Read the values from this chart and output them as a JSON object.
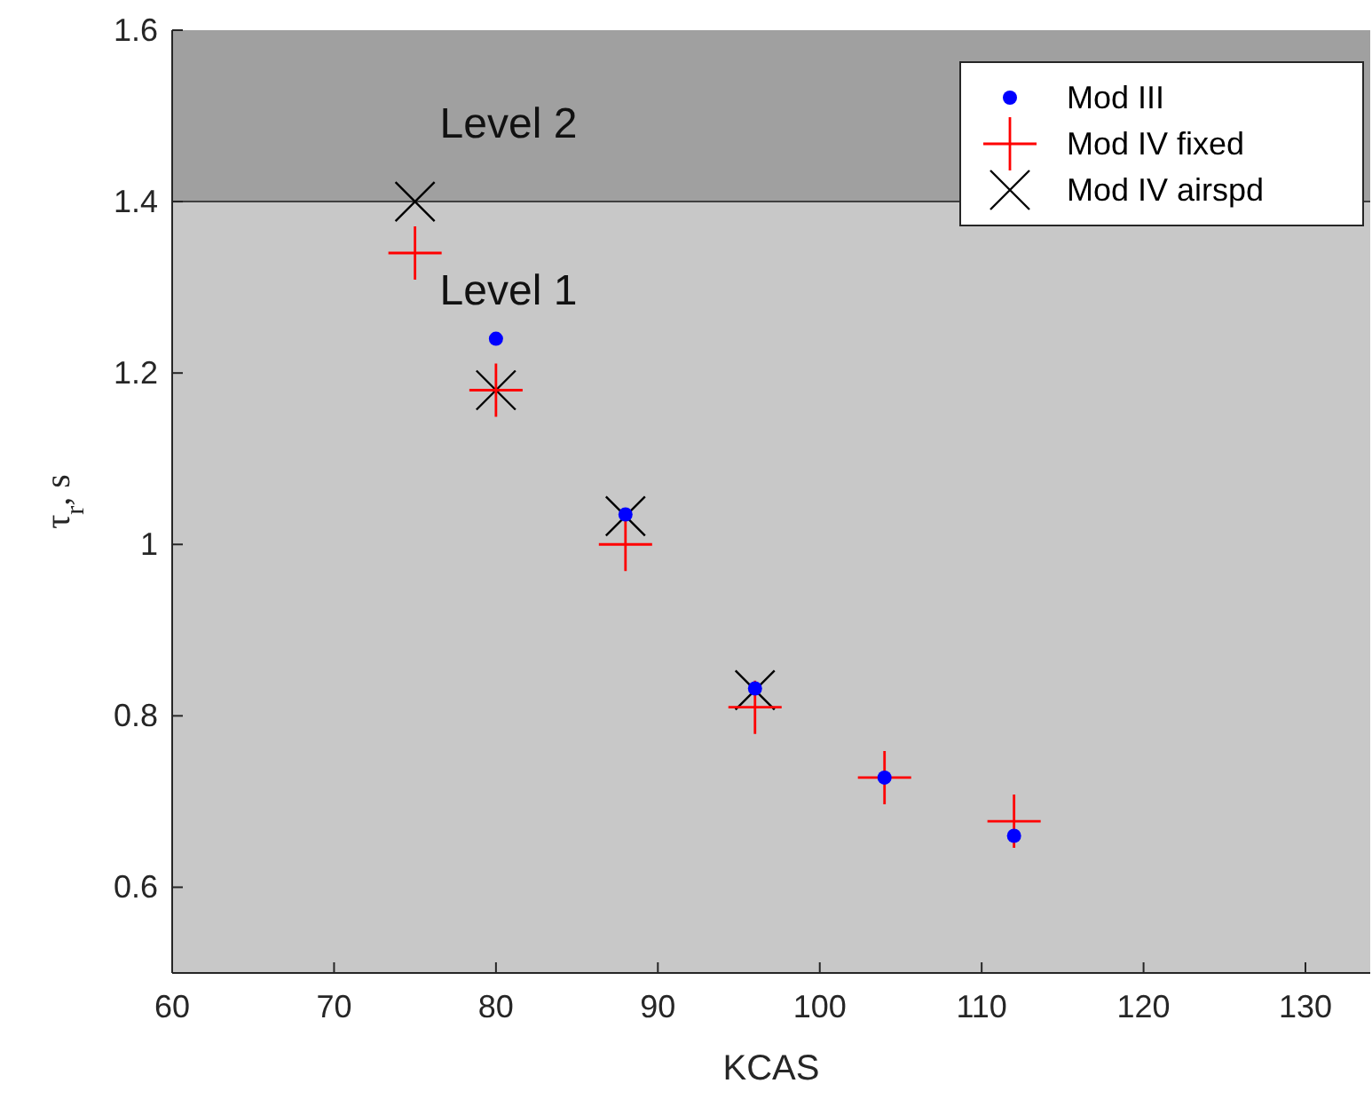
{
  "chart_data": {
    "type": "scatter",
    "xlabel": "KCAS",
    "ylabel": "τ$_{r}$, s",
    "xlim": [
      60,
      134
    ],
    "xticks": [
      60,
      70,
      80,
      90,
      100,
      110,
      120,
      130
    ],
    "ylim": [
      0.5,
      1.6
    ],
    "yticks": [
      0.6,
      0.8,
      1,
      1.2,
      1.4,
      1.6
    ],
    "bands": [
      {
        "axis": "y",
        "from": 1.4,
        "to": 1.6,
        "label": "Level 2",
        "color": "#a0a0a0"
      },
      {
        "axis": "y",
        "from": 0.5,
        "to": 1.4,
        "label": "Level 1",
        "color": "#c8c8c8"
      }
    ],
    "ref_lines": [
      {
        "axis": "y",
        "value": 1.4,
        "color": "#404040"
      }
    ],
    "legend": "top right",
    "grid": false,
    "series": [
      {
        "name": "Mod III",
        "color": "#0000ff",
        "marker": "circle",
        "x": [
          80,
          88,
          96,
          104,
          112
        ],
        "values": [
          1.24,
          1.035,
          0.832,
          0.728,
          0.66
        ]
      },
      {
        "name": "Mod IV fixed",
        "color": "#ff0000",
        "marker": "cross",
        "x": [
          75,
          80,
          88,
          96,
          104,
          112
        ],
        "values": [
          1.34,
          1.18,
          1.0,
          0.81,
          0.728,
          0.677
        ]
      },
      {
        "name": "Mod IV airspd",
        "color": "#000000",
        "marker": "x",
        "x": [
          75,
          80,
          88,
          96
        ],
        "values": [
          1.4,
          1.18,
          1.033,
          0.83
        ]
      }
    ]
  }
}
